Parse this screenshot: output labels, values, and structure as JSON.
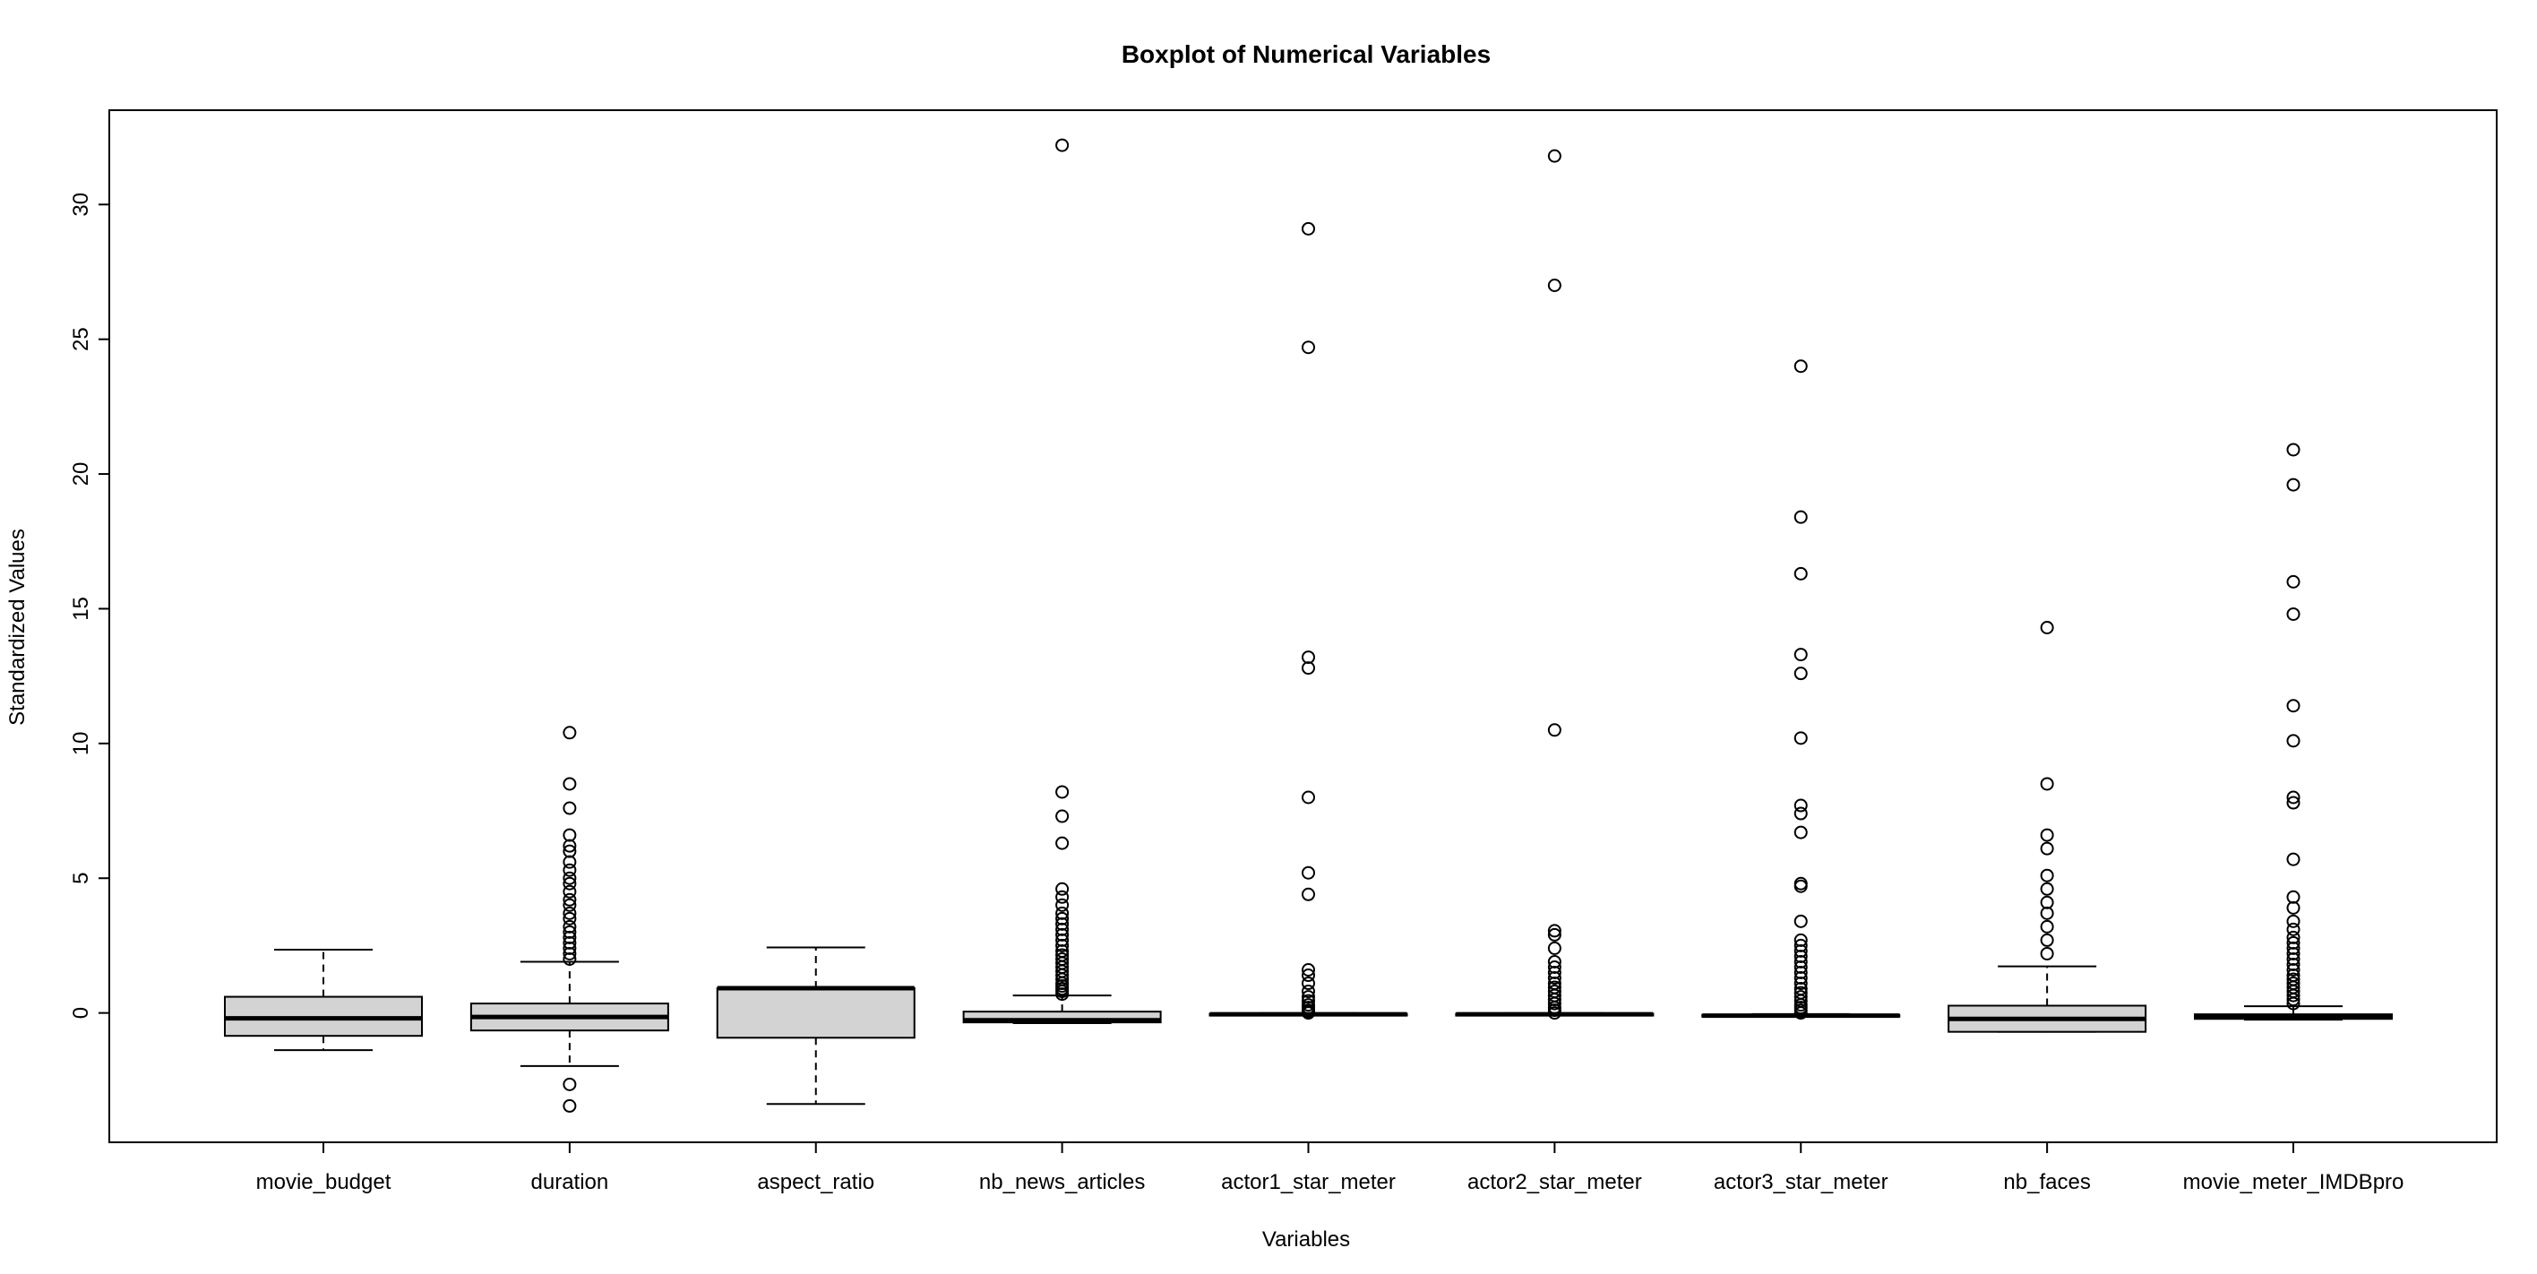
{
  "chart_data": {
    "type": "boxplot",
    "title": "Boxplot of Numerical Variables",
    "xlabel": "Variables",
    "ylabel": "Standardized Values",
    "ylim": [
      -4.8,
      33.5
    ],
    "yticks": [
      0,
      5,
      10,
      15,
      20,
      25,
      30
    ],
    "grid": false,
    "legend": "none",
    "colors": {
      "box_fill": "#d3d3d3",
      "stroke": "#000000"
    },
    "categories": [
      "movie_budget",
      "duration",
      "aspect_ratio",
      "nb_news_articles",
      "actor1_star_meter",
      "actor2_star_meter",
      "actor3_star_meter",
      "nb_faces",
      "movie_meter_IMDBpro"
    ],
    "boxes": [
      {
        "name": "movie_budget",
        "whisker_low": -1.38,
        "q1": -0.85,
        "median": -0.2,
        "q3": 0.6,
        "whisker_high": 2.35,
        "outliers": []
      },
      {
        "name": "duration",
        "whisker_low": -1.97,
        "q1": -0.65,
        "median": -0.15,
        "q3": 0.35,
        "whisker_high": 1.9,
        "outliers": [
          2.0,
          2.2,
          2.4,
          2.6,
          2.8,
          3.0,
          3.2,
          3.5,
          3.7,
          4.0,
          4.2,
          4.5,
          4.8,
          5.0,
          5.3,
          5.6,
          6.0,
          6.2,
          6.6,
          7.6,
          8.5,
          10.4,
          -2.65,
          -3.45
        ]
      },
      {
        "name": "aspect_ratio",
        "whisker_low": -3.38,
        "q1": -0.92,
        "median": 0.92,
        "q3": 0.92,
        "whisker_high": 2.43,
        "outliers": []
      },
      {
        "name": "nb_news_articles",
        "whisker_low": -0.38,
        "q1": -0.35,
        "median": -0.27,
        "q3": 0.05,
        "whisker_high": 0.65,
        "outliers": [
          0.7,
          0.8,
          0.9,
          1.0,
          1.1,
          1.25,
          1.4,
          1.55,
          1.7,
          1.85,
          2.0,
          2.15,
          2.3,
          2.5,
          2.7,
          2.9,
          3.1,
          3.3,
          3.5,
          3.7,
          4.0,
          4.3,
          4.6,
          6.3,
          7.3,
          8.2,
          32.2
        ]
      },
      {
        "name": "actor1_star_meter",
        "whisker_low": -0.09,
        "q1": -0.07,
        "median": -0.05,
        "q3": -0.03,
        "whisker_high": -0.01,
        "outliers": [
          0.0,
          0.05,
          0.1,
          0.2,
          0.3,
          0.45,
          0.6,
          0.8,
          1.1,
          1.4,
          1.6,
          4.4,
          5.2,
          8.0,
          12.8,
          13.2,
          24.7,
          29.1
        ]
      },
      {
        "name": "actor2_star_meter",
        "whisker_low": -0.09,
        "q1": -0.07,
        "median": -0.05,
        "q3": -0.03,
        "whisker_high": -0.01,
        "outliers": [
          0.0,
          0.1,
          0.2,
          0.35,
          0.5,
          0.65,
          0.8,
          0.95,
          1.1,
          1.3,
          1.5,
          1.7,
          1.9,
          2.4,
          2.9,
          3.05,
          10.5,
          27.0,
          31.8
        ]
      },
      {
        "name": "actor3_star_meter",
        "whisker_low": -0.14,
        "q1": -0.12,
        "median": -0.1,
        "q3": -0.07,
        "whisker_high": -0.04,
        "outliers": [
          0.0,
          0.1,
          0.2,
          0.3,
          0.45,
          0.6,
          0.75,
          0.9,
          1.1,
          1.3,
          1.5,
          1.7,
          1.9,
          2.1,
          2.3,
          2.5,
          2.7,
          3.4,
          4.7,
          4.8,
          6.7,
          7.4,
          7.7,
          10.2,
          12.6,
          13.3,
          16.3,
          18.4,
          24.0
        ]
      },
      {
        "name": "nb_faces",
        "whisker_low": -0.7,
        "q1": -0.7,
        "median": -0.22,
        "q3": 0.27,
        "whisker_high": 1.73,
        "outliers": [
          2.2,
          2.7,
          3.2,
          3.7,
          4.1,
          4.6,
          5.1,
          6.1,
          6.6,
          8.5,
          14.3
        ]
      },
      {
        "name": "movie_meter_IMDBpro",
        "whisker_low": -0.25,
        "q1": -0.22,
        "median": -0.15,
        "q3": -0.05,
        "whisker_high": 0.25,
        "outliers": [
          0.35,
          0.5,
          0.65,
          0.8,
          0.95,
          1.1,
          1.25,
          1.4,
          1.6,
          1.8,
          2.0,
          2.2,
          2.4,
          2.6,
          2.8,
          3.1,
          3.4,
          3.9,
          4.3,
          5.7,
          7.8,
          8.0,
          10.1,
          11.4,
          14.8,
          16.0,
          19.6,
          20.9
        ]
      }
    ]
  }
}
